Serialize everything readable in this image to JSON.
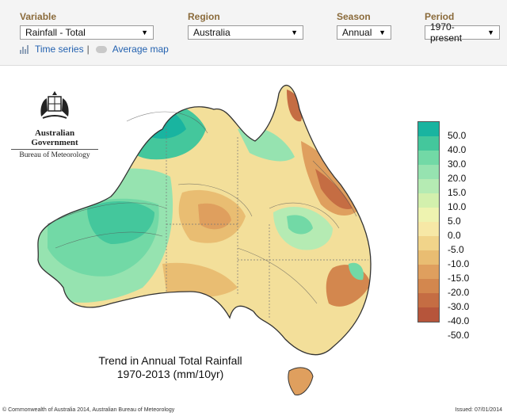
{
  "controls": [
    {
      "label": "Variable",
      "value": "Rainfall - Total"
    },
    {
      "label": "Region",
      "value": "Australia"
    },
    {
      "label": "Season",
      "value": "Annual"
    },
    {
      "label": "Period",
      "value": "1970-present"
    }
  ],
  "links": {
    "time_series": "Time series",
    "separator": "|",
    "average_map": "Average map"
  },
  "logo": {
    "government": "Australian Government",
    "bureau": "Bureau of Meteorology"
  },
  "map": {
    "title_line1": "Trend in Annual Total Rainfall",
    "title_line2": "1970-2013 (mm/10yr)"
  },
  "legend": {
    "labels": [
      "50.0",
      "40.0",
      "30.0",
      "20.0",
      "15.0",
      "10.0",
      "5.0",
      "0.0",
      "-5.0",
      "-10.0",
      "-15.0",
      "-20.0",
      "-30.0",
      "-40.0",
      "-50.0"
    ],
    "colors": [
      "#19b4a0",
      "#44c79c",
      "#72d9a6",
      "#96e3b0",
      "#b5ebb3",
      "#d3f0ad",
      "#eef3b0",
      "#f7e8a6",
      "#f1d48a",
      "#e9bd72",
      "#df9f5e",
      "#d3874e",
      "#c56d43",
      "#b6553b"
    ]
  },
  "footer": {
    "copyright": "© Commonwealth of Australia 2014, Australian Bureau of Meteorology",
    "issued": "Issued: 07/01/2014"
  }
}
